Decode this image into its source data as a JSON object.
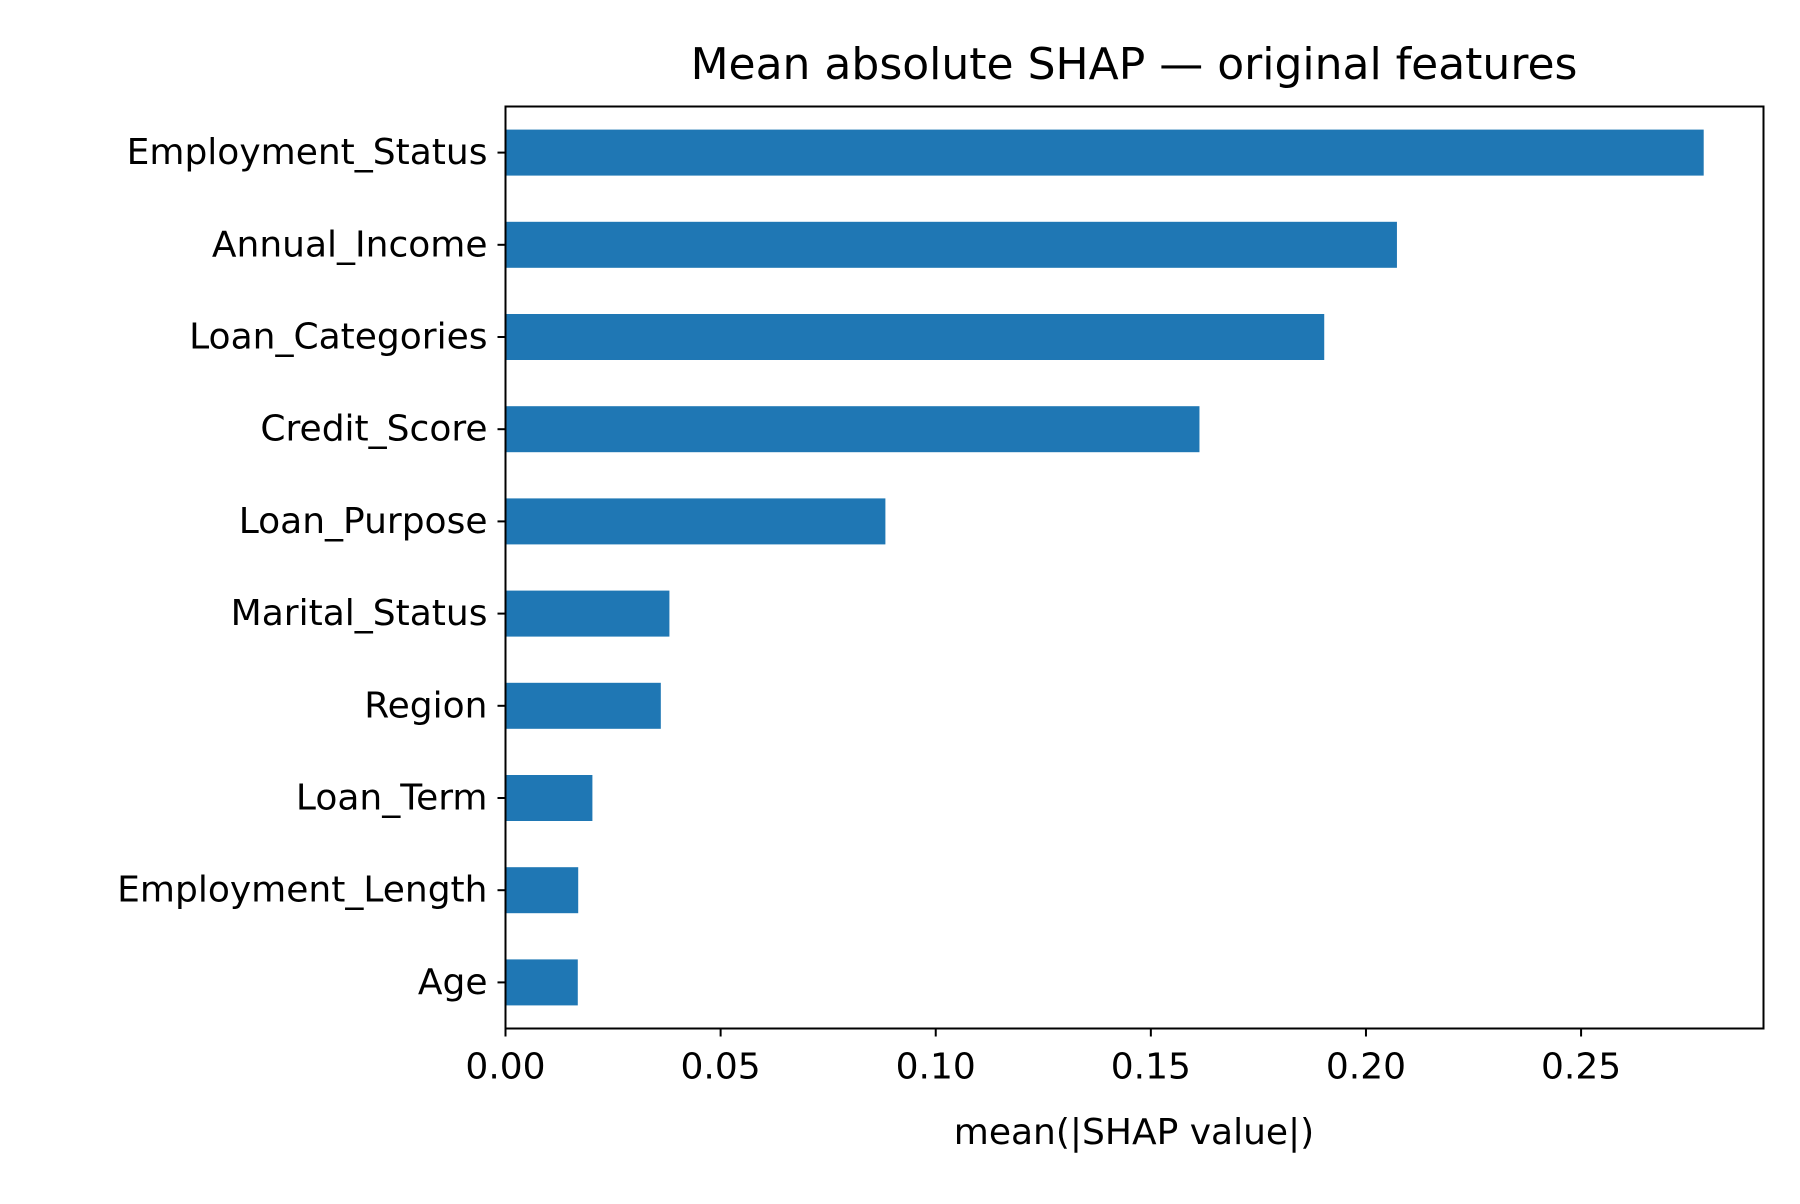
{
  "chart_data": {
    "type": "bar",
    "orientation": "horizontal",
    "title": "Mean absolute SHAP — original features",
    "xlabel": "mean(|SHAP value|)",
    "ylabel": "",
    "categories": [
      "Employment_Status",
      "Annual_Income",
      "Loan_Categories",
      "Credit_Score",
      "Loan_Purpose",
      "Marital_Status",
      "Region",
      "Loan_Term",
      "Employment_Length",
      "Age"
    ],
    "values": [
      0.2785,
      0.2072,
      0.1903,
      0.1613,
      0.0883,
      0.0381,
      0.0361,
      0.0202,
      0.0169,
      0.0168
    ],
    "xlim": [
      0,
      0.2924
    ],
    "xticks": [
      0.0,
      0.05,
      0.1,
      0.15,
      0.2,
      0.25
    ],
    "xtick_labels": [
      "0.00",
      "0.05",
      "0.10",
      "0.15",
      "0.20",
      "0.25"
    ],
    "grid": false,
    "legend": "none",
    "bar_color": "#1f77b4"
  }
}
